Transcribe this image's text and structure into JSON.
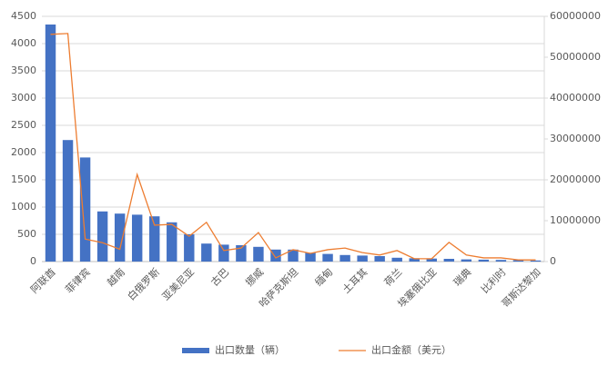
{
  "chart_data": {
    "type": "bar_line",
    "categories": [
      "阿联酋",
      null,
      "菲律宾",
      null,
      "越南",
      null,
      "白俄罗斯",
      null,
      "亚美尼亚",
      null,
      "古巴",
      null,
      "挪威",
      null,
      "哈萨克斯坦",
      null,
      "缅甸",
      null,
      "土耳其",
      null,
      "荷兰",
      null,
      "埃塞俄比亚",
      null,
      "瑞典",
      null,
      "比利时",
      null,
      "哥斯达黎加"
    ],
    "series": [
      {
        "name": "出口数量（辆）",
        "color": "#4472c4",
        "type": "bar",
        "values": [
          4350,
          2230,
          1910,
          920,
          880,
          860,
          830,
          720,
          500,
          330,
          310,
          300,
          270,
          220,
          220,
          160,
          140,
          120,
          110,
          100,
          70,
          60,
          55,
          50,
          40,
          35,
          30,
          25,
          20
        ]
      },
      {
        "name": "出口金额（美元）",
        "color": "#ed7d31",
        "type": "line",
        "axis": "y2",
        "values": [
          55600000,
          55800000,
          5500000,
          4600000,
          3000000,
          21300000,
          8900000,
          9100000,
          6200000,
          9600000,
          2700000,
          3300000,
          7100000,
          900000,
          2900000,
          2000000,
          2900000,
          3300000,
          2200000,
          1600000,
          2700000,
          700000,
          700000,
          4700000,
          1600000,
          900000,
          900000,
          400000,
          400000
        ]
      }
    ],
    "ylim": [
      0,
      4500
    ],
    "yticks": [
      0,
      500,
      1000,
      1500,
      2000,
      2500,
      3000,
      3500,
      4000,
      4500
    ],
    "y2lim": [
      0,
      60000000
    ],
    "y2ticks": [
      0,
      10000000,
      20000000,
      30000000,
      40000000,
      50000000,
      60000000
    ],
    "grid": true,
    "legend": "bottom"
  }
}
